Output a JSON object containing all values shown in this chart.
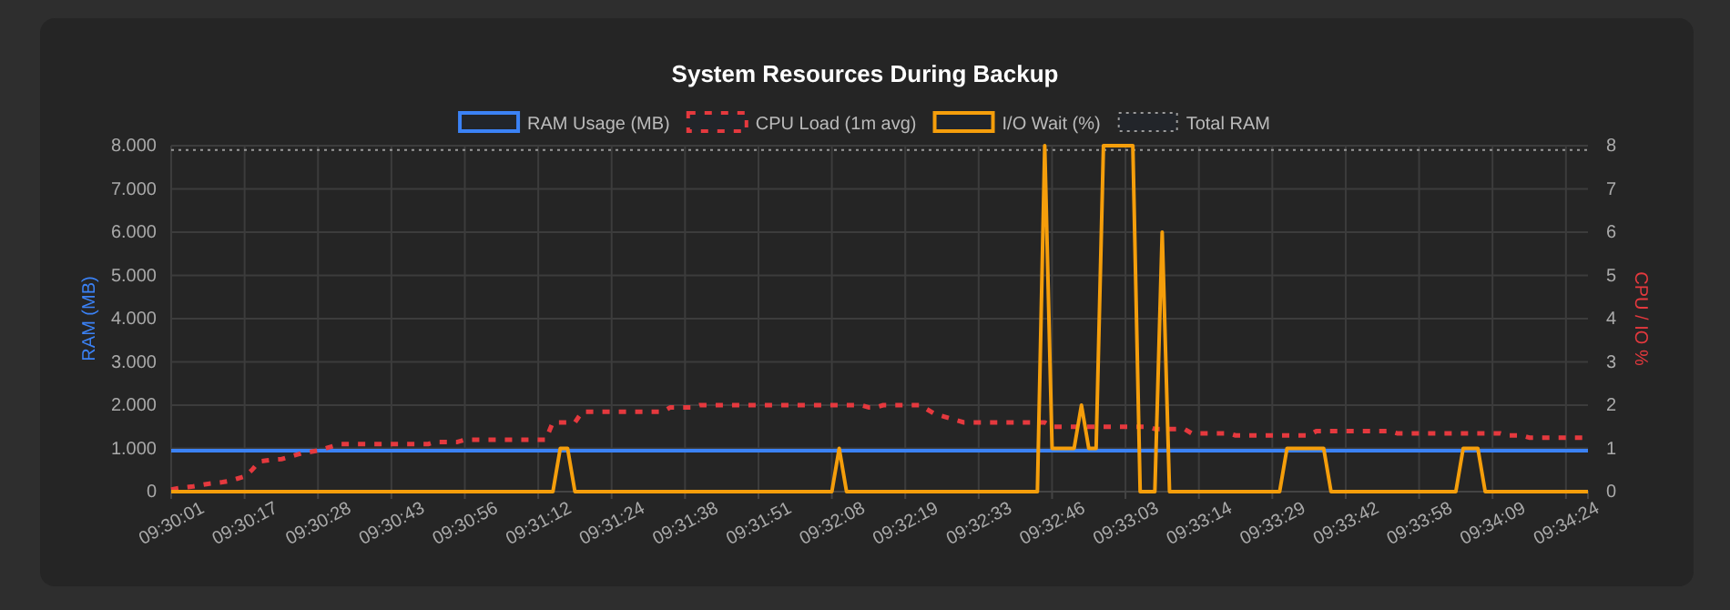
{
  "chart_data": {
    "type": "line",
    "title": "System Resources During Backup",
    "ylabel": "RAM (MB)",
    "y2label": "CPU / IO %",
    "categories": [
      "09:30:01",
      null,
      null,
      null,
      null,
      null,
      null,
      null,
      null,
      null,
      "09:30:17",
      null,
      null,
      null,
      null,
      null,
      null,
      null,
      null,
      null,
      "09:30:28",
      null,
      null,
      null,
      null,
      null,
      null,
      null,
      null,
      null,
      "09:30:43",
      null,
      null,
      null,
      null,
      null,
      null,
      null,
      null,
      null,
      "09:30:56",
      null,
      null,
      null,
      null,
      null,
      null,
      null,
      null,
      null,
      "09:31:12",
      null,
      null,
      null,
      null,
      null,
      null,
      null,
      null,
      null,
      "09:31:24",
      null,
      null,
      null,
      null,
      null,
      null,
      null,
      null,
      null,
      "09:31:38",
      null,
      null,
      null,
      null,
      null,
      null,
      null,
      null,
      null,
      "09:31:51",
      null,
      null,
      null,
      null,
      null,
      null,
      null,
      null,
      null,
      "09:32:08",
      null,
      null,
      null,
      null,
      null,
      null,
      null,
      null,
      null,
      "09:32:19",
      null,
      null,
      null,
      null,
      null,
      null,
      null,
      null,
      null,
      "09:32:33",
      null,
      null,
      null,
      null,
      null,
      null,
      null,
      null,
      null,
      "09:32:46",
      null,
      null,
      null,
      null,
      null,
      null,
      null,
      null,
      null,
      "09:33:03",
      null,
      null,
      null,
      null,
      null,
      null,
      null,
      null,
      null,
      "09:33:14",
      null,
      null,
      null,
      null,
      null,
      null,
      null,
      null,
      null,
      "09:33:29",
      null,
      null,
      null,
      null,
      null,
      null,
      null,
      null,
      null,
      "09:33:42",
      null,
      null,
      null,
      null,
      null,
      null,
      null,
      null,
      null,
      "09:33:58",
      null,
      null,
      null,
      null,
      null,
      null,
      null,
      null,
      null,
      "09:34:09",
      null,
      null,
      null,
      null,
      null,
      null,
      null,
      null,
      null,
      "09:34:24",
      null,
      null,
      null
    ],
    "series": [
      {
        "name": "RAM Usage (MB)",
        "color": "#3b82f6",
        "line_style": "solid",
        "values": [
          950,
          950,
          950,
          950,
          950,
          950,
          950,
          950,
          950,
          950,
          950,
          950,
          950,
          950,
          950,
          950,
          950,
          950,
          950,
          950,
          950,
          950,
          950,
          950,
          950,
          950,
          950,
          950,
          950,
          950,
          950,
          950,
          950,
          950,
          950,
          950,
          950,
          950,
          950,
          950,
          950,
          950,
          950,
          950,
          950,
          950,
          950,
          950,
          950,
          950,
          950,
          950,
          950,
          950,
          950,
          950,
          950,
          950,
          950,
          950,
          950,
          950,
          950,
          950,
          950,
          950,
          950,
          950,
          950,
          950,
          950,
          950,
          950,
          950,
          950,
          950,
          950,
          950,
          950,
          950,
          950,
          950,
          950,
          950,
          950,
          950,
          950,
          950,
          950,
          950,
          950,
          950,
          950,
          950,
          950,
          950,
          950,
          950,
          950,
          950,
          950,
          950,
          950,
          950,
          950,
          950,
          950,
          950,
          950,
          950,
          950,
          950,
          950,
          950,
          950,
          950,
          950,
          950,
          950,
          950,
          950,
          950,
          950,
          950,
          950,
          950,
          950,
          950,
          950,
          950,
          950,
          950,
          950,
          950,
          950,
          950,
          950,
          950,
          950,
          950,
          950,
          950,
          950,
          950,
          950,
          950,
          950,
          950,
          950,
          950,
          950,
          950,
          950,
          950,
          950,
          950,
          950,
          950,
          950,
          950,
          950,
          950,
          950,
          950,
          950,
          950,
          950,
          950,
          950,
          950,
          950,
          950,
          950,
          950,
          950,
          950,
          950,
          950,
          950,
          950,
          950,
          950,
          950,
          950,
          950,
          950,
          950,
          950,
          950,
          950,
          950,
          950,
          950,
          950
        ]
      },
      {
        "name": "CPU Load (1m avg)",
        "color": "#e5393e",
        "line_style": "dashed",
        "axis": "y2",
        "values": [
          0.05,
          0.08,
          0.1,
          0.12,
          0.15,
          0.18,
          0.2,
          0.22,
          0.25,
          0.3,
          0.35,
          0.5,
          0.7,
          0.72,
          0.74,
          0.75,
          0.8,
          0.85,
          0.9,
          0.92,
          0.95,
          1,
          1.05,
          1.1,
          1.1,
          1.1,
          1.1,
          1.1,
          1.1,
          1.1,
          1.1,
          1.1,
          1.1,
          1.1,
          1.1,
          1.1,
          1.15,
          1.15,
          1.15,
          1.15,
          1.2,
          1.2,
          1.2,
          1.2,
          1.2,
          1.2,
          1.2,
          1.2,
          1.2,
          1.2,
          1.2,
          1.2,
          1.6,
          1.6,
          1.6,
          1.6,
          1.85,
          1.85,
          1.85,
          1.85,
          1.85,
          1.85,
          1.85,
          1.85,
          1.85,
          1.85,
          1.85,
          1.85,
          1.95,
          1.95,
          1.95,
          1.95,
          2,
          2,
          2,
          2,
          2,
          2,
          2,
          2,
          2,
          2,
          2,
          2,
          2,
          2,
          2,
          2,
          2,
          2,
          2,
          2,
          2,
          2,
          2,
          1.95,
          1.95,
          2,
          2,
          2,
          2,
          2,
          2,
          1.9,
          1.8,
          1.75,
          1.7,
          1.65,
          1.6,
          1.6,
          1.6,
          1.6,
          1.6,
          1.6,
          1.6,
          1.6,
          1.6,
          1.6,
          1.6,
          1.6,
          1.5,
          1.5,
          1.5,
          1.5,
          1.5,
          1.5,
          1.5,
          1.5,
          1.5,
          1.5,
          1.5,
          1.5,
          1.5,
          1.5,
          1.45,
          1.45,
          1.45,
          1.45,
          1.45,
          1.35,
          1.35,
          1.35,
          1.35,
          1.35,
          1.35,
          1.3,
          1.3,
          1.3,
          1.3,
          1.3,
          1.3,
          1.3,
          1.3,
          1.3,
          1.3,
          1.3,
          1.4,
          1.4,
          1.4,
          1.4,
          1.4,
          1.4,
          1.4,
          1.4,
          1.4,
          1.4,
          1.4,
          1.35,
          1.35,
          1.35,
          1.35,
          1.35,
          1.35,
          1.35,
          1.35,
          1.35,
          1.35,
          1.35,
          1.35,
          1.35,
          1.35,
          1.35,
          1.3,
          1.3,
          1.3,
          1.25,
          1.25,
          1.25,
          1.25,
          1.25,
          1.25,
          1.25,
          1.25,
          1.25
        ]
      },
      {
        "name": "I/O Wait (%)",
        "color": "#f59e0b",
        "line_style": "solid",
        "axis": "y2",
        "values": [
          0,
          0,
          0,
          0,
          0,
          0,
          0,
          0,
          0,
          0,
          0,
          0,
          0,
          0,
          0,
          0,
          0,
          0,
          0,
          0,
          0,
          0,
          0,
          0,
          0,
          0,
          0,
          0,
          0,
          0,
          0,
          0,
          0,
          0,
          0,
          0,
          0,
          0,
          0,
          0,
          0,
          0,
          0,
          0,
          0,
          0,
          0,
          0,
          0,
          0,
          0,
          0,
          0,
          1,
          1,
          0,
          0,
          0,
          0,
          0,
          0,
          0,
          0,
          0,
          0,
          0,
          0,
          0,
          0,
          0,
          0,
          0,
          0,
          0,
          0,
          0,
          0,
          0,
          0,
          0,
          0,
          0,
          0,
          0,
          0,
          0,
          0,
          0,
          0,
          0,
          0,
          1,
          0,
          0,
          0,
          0,
          0,
          0,
          0,
          0,
          0,
          0,
          0,
          0,
          0,
          0,
          0,
          0,
          0,
          0,
          0,
          0,
          0,
          0,
          0,
          0,
          0,
          0,
          0,
          8,
          1,
          1,
          1,
          1,
          2,
          1,
          1,
          8,
          8,
          8,
          8,
          8,
          0,
          0,
          0,
          6,
          0,
          0,
          0,
          0,
          0,
          0,
          0,
          0,
          0,
          0,
          0,
          0,
          0,
          0,
          0,
          0,
          1,
          1,
          1,
          1,
          1,
          1,
          0,
          0,
          0,
          0,
          0,
          0,
          0,
          0,
          0,
          0,
          0,
          0,
          0,
          0,
          0,
          0,
          0,
          0,
          1,
          1,
          1,
          0,
          0,
          0,
          0,
          0,
          0,
          0,
          0,
          0,
          0,
          0,
          0,
          0,
          0,
          0
        ]
      }
    ],
    "ref_lines": [
      {
        "axis": "y",
        "value": 7900,
        "label": "Total RAM",
        "color": "#9a9a9a",
        "line_style": "dotted"
      }
    ],
    "ylim": [
      0,
      8000
    ],
    "yticks": [
      0,
      {
        "value": 1000,
        "label": "1.000"
      },
      {
        "value": 2000,
        "label": "2.000"
      },
      {
        "value": 3000,
        "label": "3.000"
      },
      {
        "value": 4000,
        "label": "4.000"
      },
      {
        "value": 5000,
        "label": "5.000"
      },
      {
        "value": 6000,
        "label": "6.000"
      },
      {
        "value": 7000,
        "label": "7.000"
      },
      {
        "value": 8000,
        "label": "8.000"
      }
    ],
    "y2lim": [
      0,
      8
    ],
    "y2ticks": [
      0,
      1,
      2,
      3,
      4,
      5,
      6,
      7,
      8
    ],
    "grid": true,
    "legend": "top",
    "marker": "none"
  }
}
